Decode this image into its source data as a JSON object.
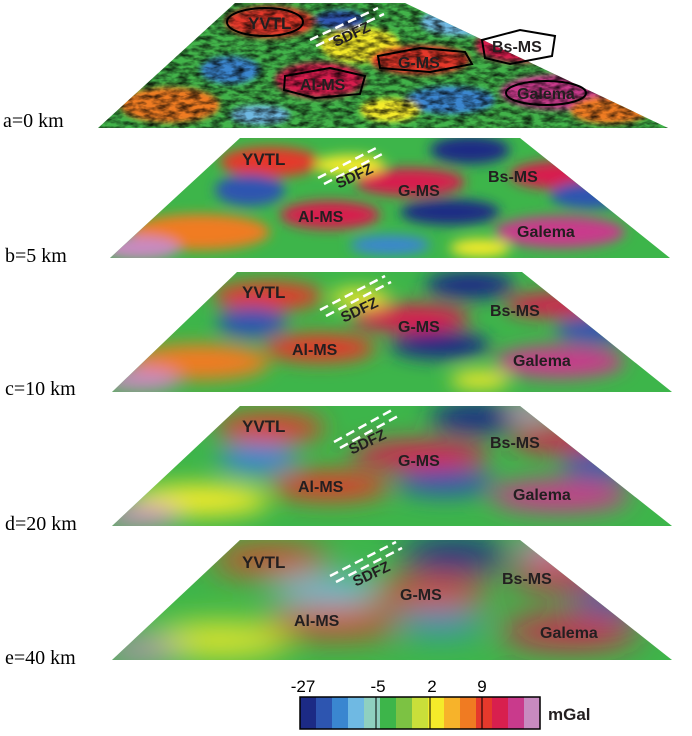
{
  "layers": [
    {
      "depth_label": "a=0 km"
    },
    {
      "depth_label": "b=5 km"
    },
    {
      "depth_label": "c=10 km"
    },
    {
      "depth_label": "d=20 km"
    },
    {
      "depth_label": "e=40 km"
    }
  ],
  "features": {
    "yvtl": "YVTL",
    "sdfz": "SDFZ",
    "gms": "G-MS",
    "bsms": "Bs-MS",
    "alms": "Al-MS",
    "galema": "Galema"
  },
  "colorbar": {
    "unit": "mGal",
    "ticks": [
      "-27",
      "-5",
      "2",
      "9"
    ],
    "colors": [
      "#1c2a85",
      "#2d55b0",
      "#3a86d0",
      "#6fb9e3",
      "#8fd0c0",
      "#3db54a",
      "#7cc243",
      "#c9df3a",
      "#f5eb2a",
      "#f7b32a",
      "#f07b22",
      "#e5392c",
      "#d81f4e",
      "#c93a8c",
      "#c88ac0"
    ]
  }
}
